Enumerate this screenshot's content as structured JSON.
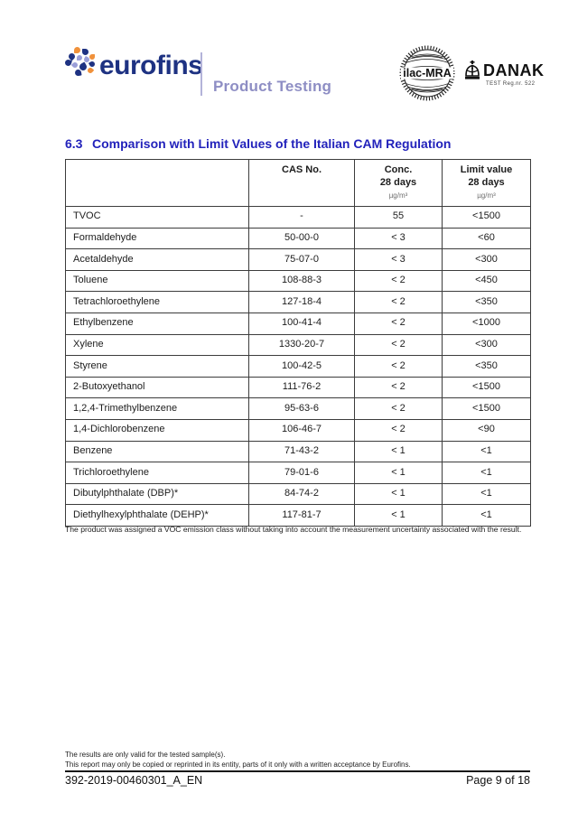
{
  "colors": {
    "heading_blue": "#2222bb",
    "brand_navy": "#1e3282",
    "division_purple": "#8e8ec4",
    "logo_orange": "#f0913b",
    "logo_periwinkle": "#9a9ed8"
  },
  "header": {
    "brand": "eurofins",
    "division": "Product Testing",
    "ilac_label": "ilac-MRA",
    "danak_label": "DANAK",
    "danak_sub": "TEST Reg.nr. 522"
  },
  "section": {
    "number": "6.3",
    "title": "Comparison with Limit Values of the Italian CAM Regulation"
  },
  "table": {
    "headers": [
      {
        "label": ""
      },
      {
        "label": "CAS No."
      },
      {
        "label": "Conc.",
        "sub": "28 days",
        "unit": "µg/m³"
      },
      {
        "label": "Limit value",
        "sub": "28 days",
        "unit": "µg/m³"
      }
    ],
    "rows": [
      {
        "substance": "TVOC",
        "cas": "-",
        "conc": "55",
        "limit": "<1500"
      },
      {
        "substance": "Formaldehyde",
        "cas": "50-00-0",
        "conc": "< 3",
        "limit": "<60"
      },
      {
        "substance": "Acetaldehyde",
        "cas": "75-07-0",
        "conc": "< 3",
        "limit": "<300"
      },
      {
        "substance": "Toluene",
        "cas": "108-88-3",
        "conc": "< 2",
        "limit": "<450"
      },
      {
        "substance": "Tetrachloroethylene",
        "cas": "127-18-4",
        "conc": "< 2",
        "limit": "<350"
      },
      {
        "substance": "Ethylbenzene",
        "cas": "100-41-4",
        "conc": "< 2",
        "limit": "<1000"
      },
      {
        "substance": "Xylene",
        "cas": "1330-20-7",
        "conc": "< 2",
        "limit": "<300"
      },
      {
        "substance": "Styrene",
        "cas": "100-42-5",
        "conc": "< 2",
        "limit": "<350"
      },
      {
        "substance": "2-Butoxyethanol",
        "cas": "111-76-2",
        "conc": "< 2",
        "limit": "<1500"
      },
      {
        "substance": "1,2,4-Trimethylbenzene",
        "cas": "95-63-6",
        "conc": "< 2",
        "limit": "<1500"
      },
      {
        "substance": "1,4-Dichlorobenzene",
        "cas": "106-46-7",
        "conc": "< 2",
        "limit": "<90"
      },
      {
        "substance": "Benzene",
        "cas": "71-43-2",
        "conc": "< 1",
        "limit": "<1"
      },
      {
        "substance": "Trichloroethylene",
        "cas": "79-01-6",
        "conc": "< 1",
        "limit": "<1"
      },
      {
        "substance": "Dibutylphthalate (DBP)*",
        "cas": "84-74-2",
        "conc": "< 1",
        "limit": "<1"
      },
      {
        "substance": "Diethylhexylphthalate (DEHP)*",
        "cas": "117-81-7",
        "conc": "< 1",
        "limit": "<1"
      }
    ],
    "footnote": "The product was assigned a VOC emission class without taking into account the measurement uncertainty associated with the result."
  },
  "footer": {
    "disclaimer1": "The results are only valid for the tested sample(s).",
    "disclaimer2": "This report may only be copied or reprinted in its entity, parts of it only with a written acceptance by Eurofins.",
    "doc_id": "392-2019-00460301_A_EN",
    "page": "Page 9 of 18"
  }
}
